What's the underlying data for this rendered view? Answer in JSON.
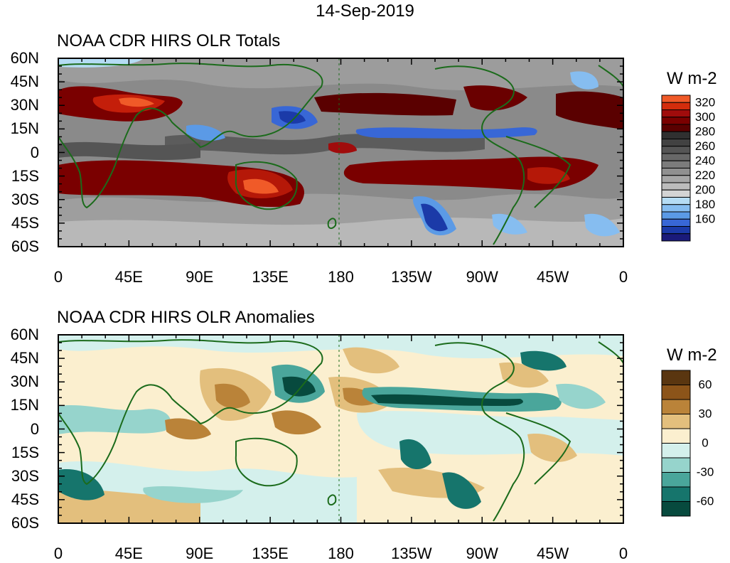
{
  "date": "14-Sep-2019",
  "totals": {
    "title": "NOAA CDR HIRS OLR Totals",
    "units": "W m-2",
    "lat_labels": [
      "60N",
      "45N",
      "30N",
      "15N",
      "0",
      "15S",
      "30S",
      "45S",
      "60S"
    ],
    "lon_labels": [
      "0",
      "45E",
      "90E",
      "135E",
      "180",
      "135W",
      "90W",
      "45W",
      "0"
    ],
    "colorbar": {
      "colors": [
        "#f05a28",
        "#d32d0c",
        "#a00c0c",
        "#7a0000",
        "#5a0000",
        "#303030",
        "#424242",
        "#555555",
        "#686868",
        "#7c7c7c",
        "#909090",
        "#a6a6a6",
        "#bcbcbc",
        "#d4d4d4",
        "#b5dcf4",
        "#86bdf0",
        "#5b9ae6",
        "#3867d6",
        "#1b3aa8",
        "#1a1a7a"
      ],
      "labels": [
        "320",
        "300",
        "280",
        "260",
        "240",
        "220",
        "200",
        "180",
        "160"
      ]
    }
  },
  "anomalies": {
    "title": "NOAA CDR HIRS OLR Anomalies",
    "units": "W m-2",
    "lat_labels": [
      "60N",
      "45N",
      "30N",
      "15N",
      "0",
      "15S",
      "30S",
      "45S",
      "60S"
    ],
    "lon_labels": [
      "0",
      "45E",
      "90E",
      "135E",
      "180",
      "135W",
      "90W",
      "45W",
      "0"
    ],
    "colorbar": {
      "colors": [
        "#5a3610",
        "#8c5419",
        "#ba8339",
        "#e3bf7d",
        "#fbefcf",
        "#d4f0ec",
        "#96d4cc",
        "#4aa69b",
        "#16756c",
        "#074a3e"
      ],
      "labels": [
        "60",
        "30",
        "0",
        "-30",
        "-60"
      ]
    }
  }
}
